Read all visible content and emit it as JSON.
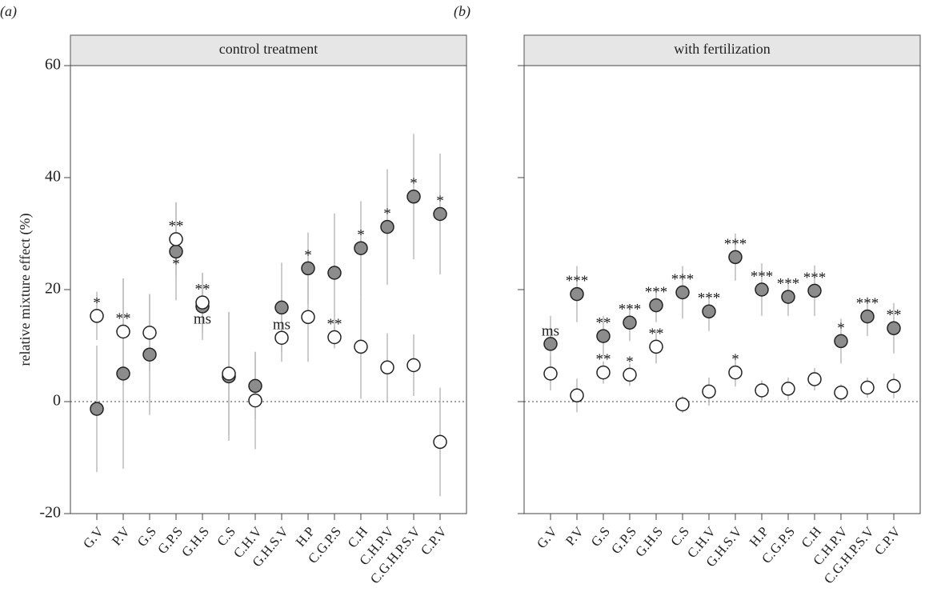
{
  "chart_data": [
    {
      "type": "dot",
      "panel_label": "(a)",
      "title": "control treatment",
      "ylabel": "relative mixture effect (%)",
      "categories": [
        "G.V",
        "P.V",
        "G.S",
        "G.P.S",
        "G.H.S",
        "C.S",
        "C.H.V",
        "G.H.S.V",
        "H.P",
        "C.G.P.S",
        "C.H",
        "C.H.P.V",
        "C.G.H.P.S.V",
        "C.P.V"
      ],
      "ylim": [
        -20,
        60
      ],
      "yticks": [
        -20,
        0,
        20,
        40,
        60
      ],
      "show_ytick_labels": true,
      "zero_line": true,
      "series": [
        {
          "color": "#8c8c8c",
          "values": [
            -1.3,
            5.0,
            8.4,
            26.8,
            17.0,
            4.5,
            2.8,
            16.8,
            23.8,
            23.0,
            27.4,
            31.2,
            36.6,
            33.5
          ],
          "errors": [
            11.3,
            17,
            10.8,
            8.7,
            6,
            11.5,
            6,
            8,
            6.4,
            10.6,
            8.4,
            10.3,
            11.2,
            10.8
          ],
          "significance": [
            null,
            null,
            null,
            "*",
            "ms",
            null,
            null,
            null,
            "*",
            null,
            "*",
            "*",
            "*",
            "*"
          ]
        },
        {
          "color": "#ffffff",
          "values": [
            15.3,
            12.5,
            12.3,
            29.0,
            17.7,
            5.0,
            0.2,
            11.4,
            15.1,
            11.5,
            9.8,
            6.1,
            6.5,
            -7.2
          ],
          "errors": [
            4.3,
            9.5,
            6.9,
            6.6,
            5.3,
            11,
            8.7,
            4.3,
            8,
            2,
            9.3,
            6.1,
            5.5,
            9.7
          ],
          "significance": [
            "*",
            "**",
            null,
            "**",
            "**",
            null,
            null,
            "ms",
            null,
            "**",
            null,
            null,
            null,
            null
          ]
        }
      ]
    },
    {
      "type": "dot",
      "panel_label": "(b)",
      "title": "with fertilization",
      "categories": [
        "G.V",
        "P.V",
        "G.S",
        "G.P.S",
        "G.H.S",
        "C.S",
        "C.H.V",
        "G.H.S.V",
        "H.P",
        "C.G.P.S",
        "C.H",
        "C.H.P.V",
        "C.G.H.P.S.V",
        "C.P.V"
      ],
      "ylim": [
        -20,
        60
      ],
      "yticks": [
        -20,
        0,
        20,
        40,
        60
      ],
      "show_ytick_labels": false,
      "zero_line": true,
      "series": [
        {
          "color": "#8c8c8c",
          "values": [
            10.3,
            19.2,
            11.7,
            14.1,
            17.2,
            19.5,
            16.1,
            25.8,
            20.0,
            18.7,
            19.8,
            10.8,
            15.2,
            13.1
          ],
          "errors": [
            5,
            5,
            3.6,
            3.3,
            3,
            4.7,
            3.5,
            4.2,
            4.7,
            3.4,
            4.5,
            4,
            3.5,
            4.5
          ],
          "significance": [
            "ms",
            "***",
            "**",
            "***",
            "***",
            "***",
            "***",
            "***",
            "***",
            "***",
            "***",
            "*",
            "***",
            "**"
          ]
        },
        {
          "color": "#ffffff",
          "values": [
            5.0,
            1.1,
            5.2,
            4.8,
            9.8,
            -0.5,
            1.8,
            5.2,
            2.0,
            2.3,
            4.0,
            1.6,
            2.5,
            2.8
          ],
          "errors": [
            3,
            3,
            2,
            2,
            3,
            1.5,
            2.5,
            2.5,
            1.8,
            2,
            2,
            1.5,
            1.8,
            2.2
          ],
          "significance": [
            null,
            null,
            "**",
            "*",
            "**",
            null,
            null,
            "*",
            null,
            null,
            null,
            null,
            null,
            null
          ]
        }
      ]
    }
  ]
}
